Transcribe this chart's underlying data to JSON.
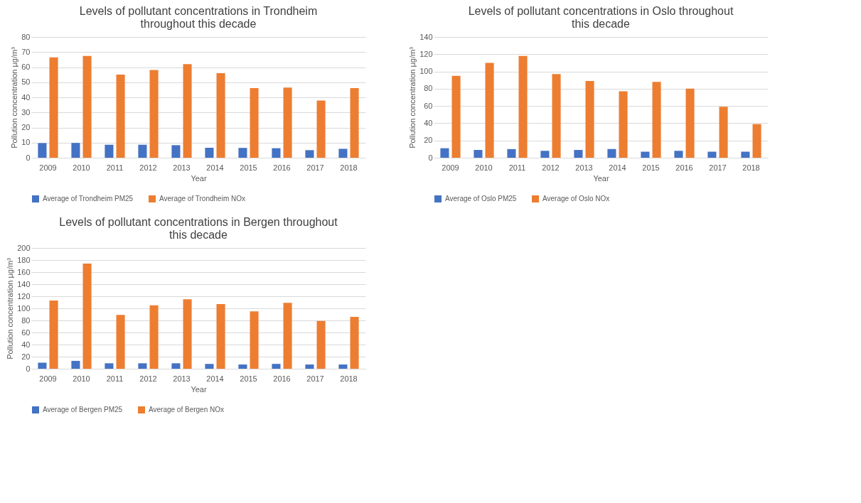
{
  "chart_data": [
    {
      "type": "bar",
      "title": "Levels of pollutant concentrations in Trondheim throughout this decade",
      "xlabel": "Year",
      "ylabel": "Pollution concentration µg/m³",
      "categories": [
        "2009",
        "2010",
        "2011",
        "2012",
        "2013",
        "2014",
        "2015",
        "2016",
        "2017",
        "2018"
      ],
      "series": [
        {
          "name": "Average of Trondheim PM25",
          "color": "#4472c4",
          "values": [
            9.7,
            9.8,
            8.6,
            8.6,
            8.3,
            6.6,
            6.5,
            6.3,
            5.0,
            5.9
          ]
        },
        {
          "name": "Average of Trondheim NOx",
          "color": "#ed7d31",
          "values": [
            66.5,
            67.4,
            55.1,
            58.1,
            62.0,
            56.0,
            46.1,
            46.5,
            37.9,
            46.1
          ]
        }
      ],
      "ylim": [
        0,
        80
      ],
      "yticks": [
        0,
        10,
        20,
        30,
        40,
        50,
        60,
        70,
        80
      ],
      "grid": "y",
      "legend": "bottom"
    },
    {
      "type": "bar",
      "title": "Levels of pollutant concentrations in Oslo throughout this decade",
      "xlabel": "Year",
      "ylabel": "Pollution concentration µg/m³",
      "categories": [
        "2009",
        "2010",
        "2011",
        "2012",
        "2013",
        "2014",
        "2015",
        "2016",
        "2017",
        "2018"
      ],
      "series": [
        {
          "name": "Average of Oslo PM25",
          "color": "#4472c4",
          "values": [
            11,
            9,
            10,
            8,
            9,
            10,
            7,
            8,
            7,
            7
          ]
        },
        {
          "name": "Average of Oslo NOx",
          "color": "#ed7d31",
          "values": [
            95,
            110,
            118,
            97,
            89,
            77,
            88,
            80,
            59,
            39
          ]
        }
      ],
      "ylim": [
        0,
        140
      ],
      "yticks": [
        0,
        20,
        40,
        60,
        80,
        100,
        120,
        140
      ],
      "grid": "y",
      "legend": "bottom"
    },
    {
      "type": "bar",
      "title": "Levels of pollutant concentrations in Bergen throughout this decade",
      "xlabel": "Year",
      "ylabel": "Pollution concentration µg/m³",
      "categories": [
        "2009",
        "2010",
        "2011",
        "2012",
        "2013",
        "2014",
        "2015",
        "2016",
        "2017",
        "2018"
      ],
      "series": [
        {
          "name": "Average of Bergen PM25",
          "color": "#4472c4",
          "values": [
            10,
            13,
            9,
            9,
            9,
            8,
            7,
            8,
            7,
            7
          ]
        },
        {
          "name": "Average of Bergen NOx",
          "color": "#ed7d31",
          "values": [
            113,
            174,
            89,
            105,
            115,
            107,
            95,
            109,
            79,
            86
          ]
        }
      ],
      "ylim": [
        0,
        200
      ],
      "yticks": [
        0,
        20,
        40,
        60,
        80,
        100,
        120,
        140,
        160,
        180,
        200
      ],
      "grid": "y",
      "legend": "bottom"
    }
  ]
}
